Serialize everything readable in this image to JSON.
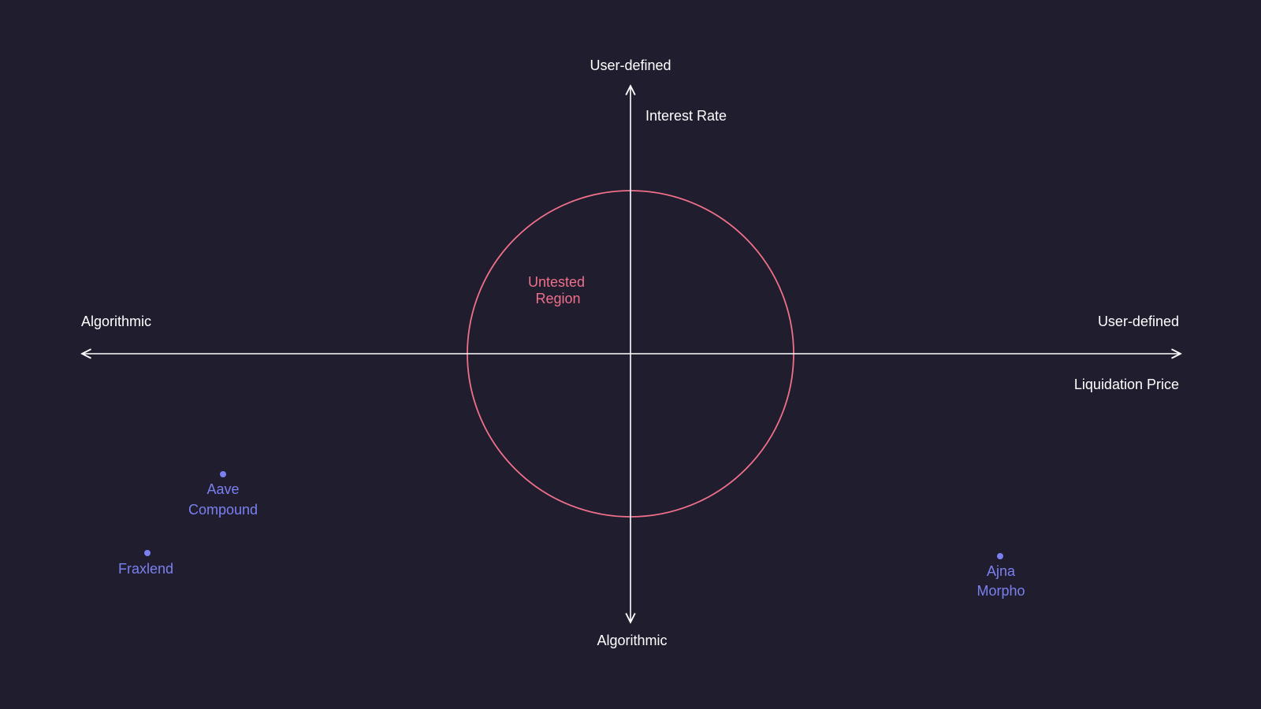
{
  "colors": {
    "background": "#1f1d2e",
    "axis": "#ffffff",
    "region": "#f0708a",
    "point": "#7b80f0"
  },
  "vertical_axis": {
    "name": "Interest Rate",
    "top": "User-defined",
    "bottom": "Algorithmic"
  },
  "horizontal_axis": {
    "name": "Liquidation Price",
    "left": "Algorithmic",
    "right": "User-defined"
  },
  "region": {
    "line1": "Untested",
    "line2": "Region"
  },
  "points": [
    {
      "line1": "Aave",
      "line2": "Compound"
    },
    {
      "line1": "Fraxlend",
      "line2": ""
    },
    {
      "line1": "Ajna",
      "line2": "Morpho"
    }
  ]
}
